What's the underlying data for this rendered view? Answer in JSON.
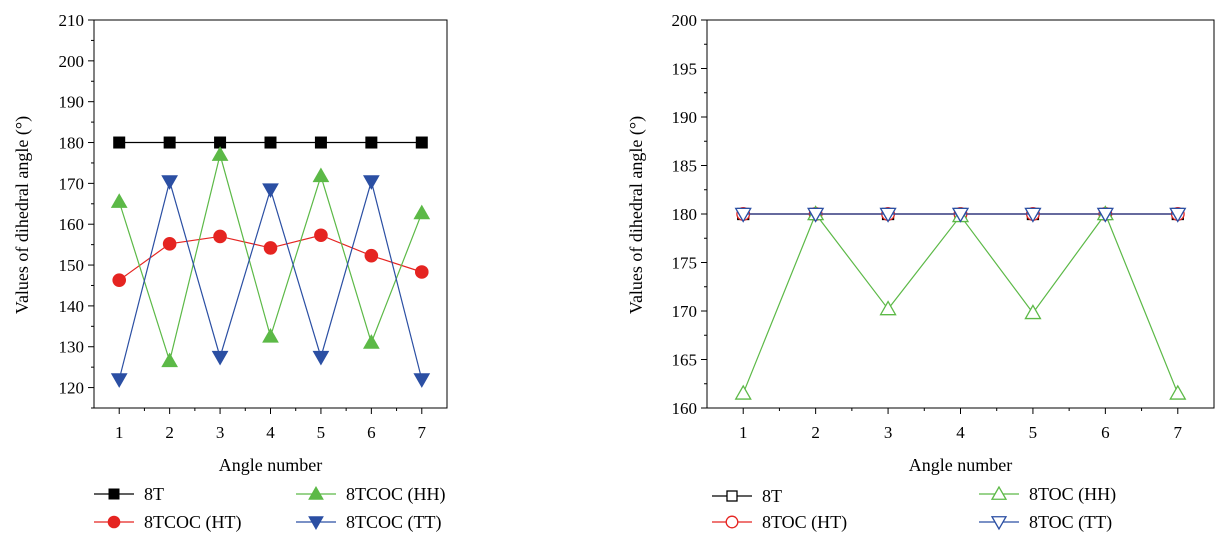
{
  "chart_data": [
    {
      "type": "line",
      "title": "",
      "xlabel": "Angle number",
      "ylabel": "Values of dihedral angle (°)",
      "xlim": [
        0.5,
        7.5
      ],
      "ylim": [
        115,
        210
      ],
      "x": [
        1,
        2,
        3,
        4,
        5,
        6,
        7
      ],
      "xticks": [
        "1",
        "2",
        "3",
        "4",
        "5",
        "6",
        "7"
      ],
      "yticks": [
        "120",
        "130",
        "140",
        "150",
        "160",
        "170",
        "180",
        "190",
        "200",
        "210"
      ],
      "ytick_values": [
        120,
        130,
        140,
        150,
        160,
        170,
        180,
        190,
        200,
        210
      ],
      "grid": false,
      "legend_position": "bottom",
      "series": [
        {
          "name": "8T",
          "color": "#000000",
          "marker": "square",
          "filled": true,
          "values": [
            180,
            180,
            180,
            180,
            180,
            180,
            180
          ]
        },
        {
          "name": "8TCOC (HT)",
          "color": "#e52421",
          "marker": "circle",
          "filled": true,
          "values": [
            146.3,
            155.2,
            157.0,
            154.2,
            157.3,
            152.3,
            148.3
          ]
        },
        {
          "name": "8TCOC (HH)",
          "color": "#5cb947",
          "marker": "triangle-up",
          "filled": true,
          "values": [
            165.5,
            126.5,
            177.0,
            132.5,
            171.8,
            131.0,
            162.7
          ]
        },
        {
          "name": "8TCOC (TT)",
          "color": "#2b4fa3",
          "marker": "triangle-down",
          "filled": true,
          "values": [
            122.0,
            170.5,
            127.5,
            168.5,
            127.5,
            170.5,
            122.0
          ]
        }
      ]
    },
    {
      "type": "line",
      "title": "",
      "xlabel": "Angle number",
      "ylabel": "Values of dihedral angle (°)",
      "xlim": [
        0.5,
        7.5
      ],
      "ylim": [
        160,
        200
      ],
      "x": [
        1,
        2,
        3,
        4,
        5,
        6,
        7
      ],
      "xticks": [
        "1",
        "2",
        "3",
        "4",
        "5",
        "6",
        "7"
      ],
      "yticks": [
        "160",
        "165",
        "170",
        "175",
        "180",
        "185",
        "190",
        "195",
        "200"
      ],
      "ytick_values": [
        160,
        165,
        170,
        175,
        180,
        185,
        190,
        195,
        200
      ],
      "grid": false,
      "legend_position": "bottom",
      "series": [
        {
          "name": "8T",
          "color": "#000000",
          "marker": "square",
          "filled": false,
          "values": [
            180,
            180,
            180,
            180,
            180,
            180,
            180
          ]
        },
        {
          "name": "8TOC (HT)",
          "color": "#e52421",
          "marker": "circle",
          "filled": false,
          "values": [
            180,
            180,
            180,
            180,
            180,
            180,
            180
          ]
        },
        {
          "name": "8TOC (HH)",
          "color": "#5cb947",
          "marker": "triangle-up",
          "filled": false,
          "values": [
            161.5,
            180,
            170.2,
            179.8,
            169.8,
            180,
            161.5
          ]
        },
        {
          "name": "8TOC (TT)",
          "color": "#2b4fa3",
          "marker": "triangle-down",
          "filled": false,
          "values": [
            180,
            180,
            180,
            180,
            180,
            180,
            180
          ]
        }
      ]
    }
  ]
}
